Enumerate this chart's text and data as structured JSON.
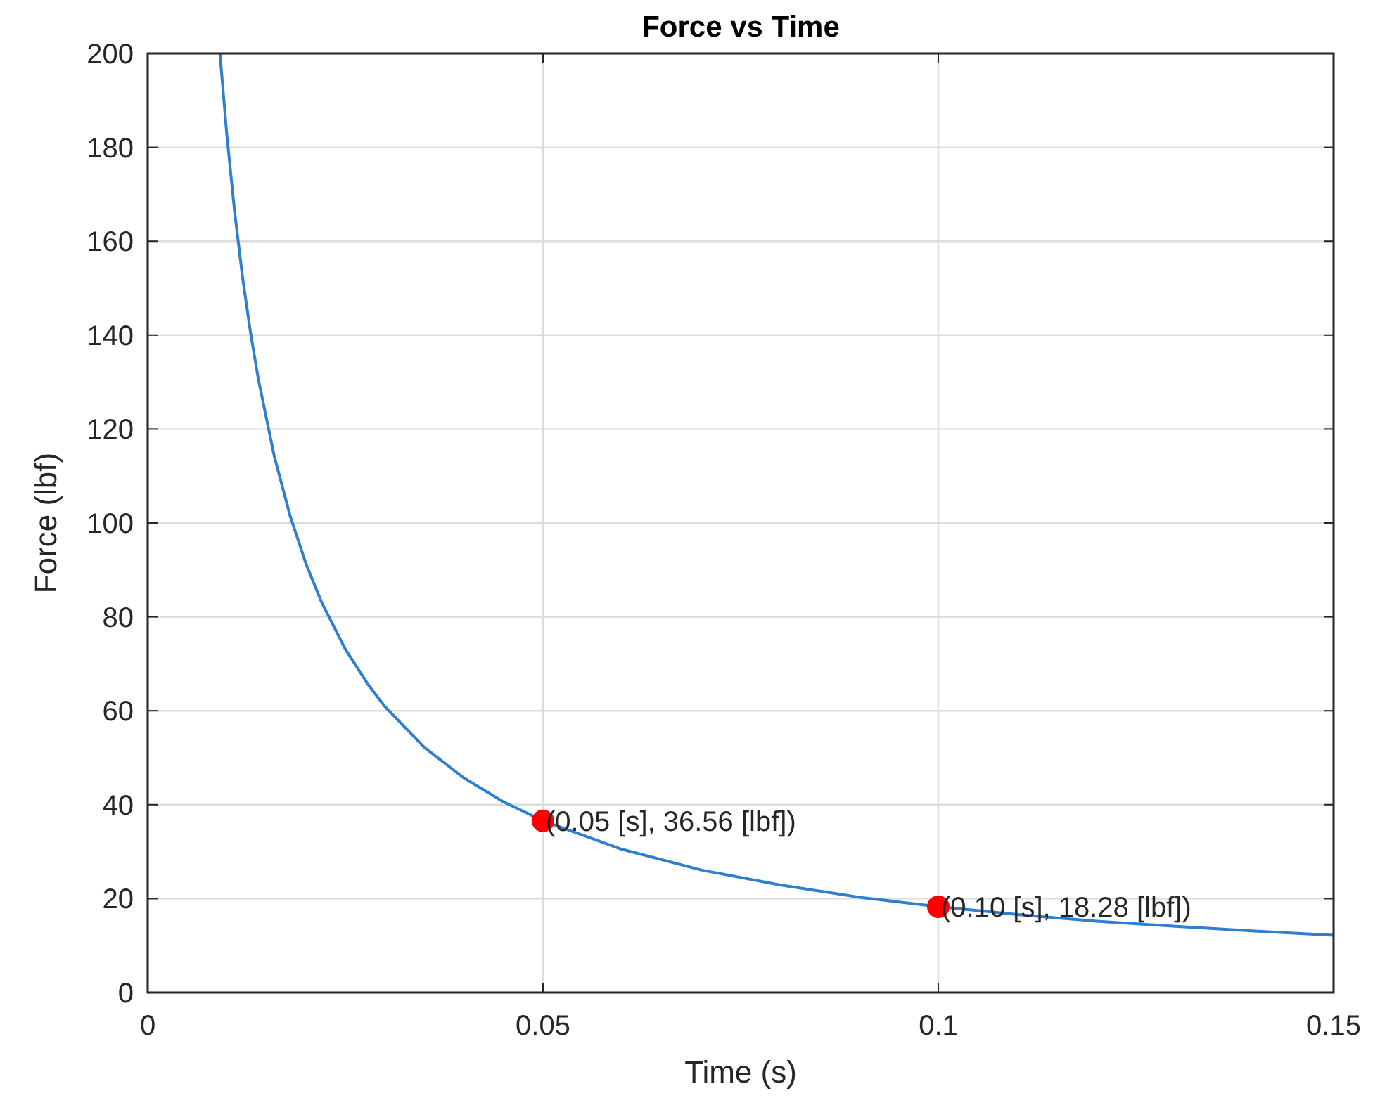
{
  "chart_data": {
    "type": "line",
    "title": "Force vs Time",
    "xlabel": "Time (s)",
    "ylabel": "Force (lbf)",
    "xlim": [
      0,
      0.15
    ],
    "xticks": [
      0,
      0.05,
      {
        "value": 0.1,
        "label": "0.1"
      },
      0.15
    ],
    "ylim": [
      0,
      200
    ],
    "yticks": [
      0,
      20,
      40,
      60,
      80,
      100,
      120,
      140,
      160,
      180,
      200
    ],
    "grid": true,
    "series": [
      {
        "color": "#2f7fd0",
        "marker": "none",
        "x": [
          0.00914,
          0.01,
          0.011,
          0.012,
          0.013,
          0.014,
          0.016,
          0.018,
          0.02,
          0.022,
          0.025,
          0.028,
          0.03,
          0.035,
          0.04,
          0.045,
          0.05,
          0.06,
          0.07,
          0.08,
          0.09,
          0.1,
          0.11,
          0.12,
          0.13,
          0.14,
          0.15
        ],
        "values": [
          200,
          182.8,
          166.2,
          152.3,
          140.6,
          130.6,
          114.3,
          101.6,
          91.4,
          83.1,
          73.1,
          65.3,
          60.9,
          52.2,
          45.7,
          40.6,
          36.6,
          30.5,
          26.1,
          22.9,
          20.3,
          18.3,
          16.6,
          15.2,
          14.1,
          13.1,
          12.2
        ]
      },
      {
        "type": "scatter",
        "color": "#ff0000",
        "marker": "circle",
        "x": [
          0.05,
          0.1
        ],
        "values": [
          36.56,
          18.28
        ]
      }
    ],
    "annotations": [
      {
        "text": "(0.05 [s], 36.56 [lbf])",
        "x": 0.05,
        "y": 36.56
      },
      {
        "text": "(0.10 [s], 18.28 [lbf])",
        "x": 0.1,
        "y": 18.28
      }
    ]
  }
}
